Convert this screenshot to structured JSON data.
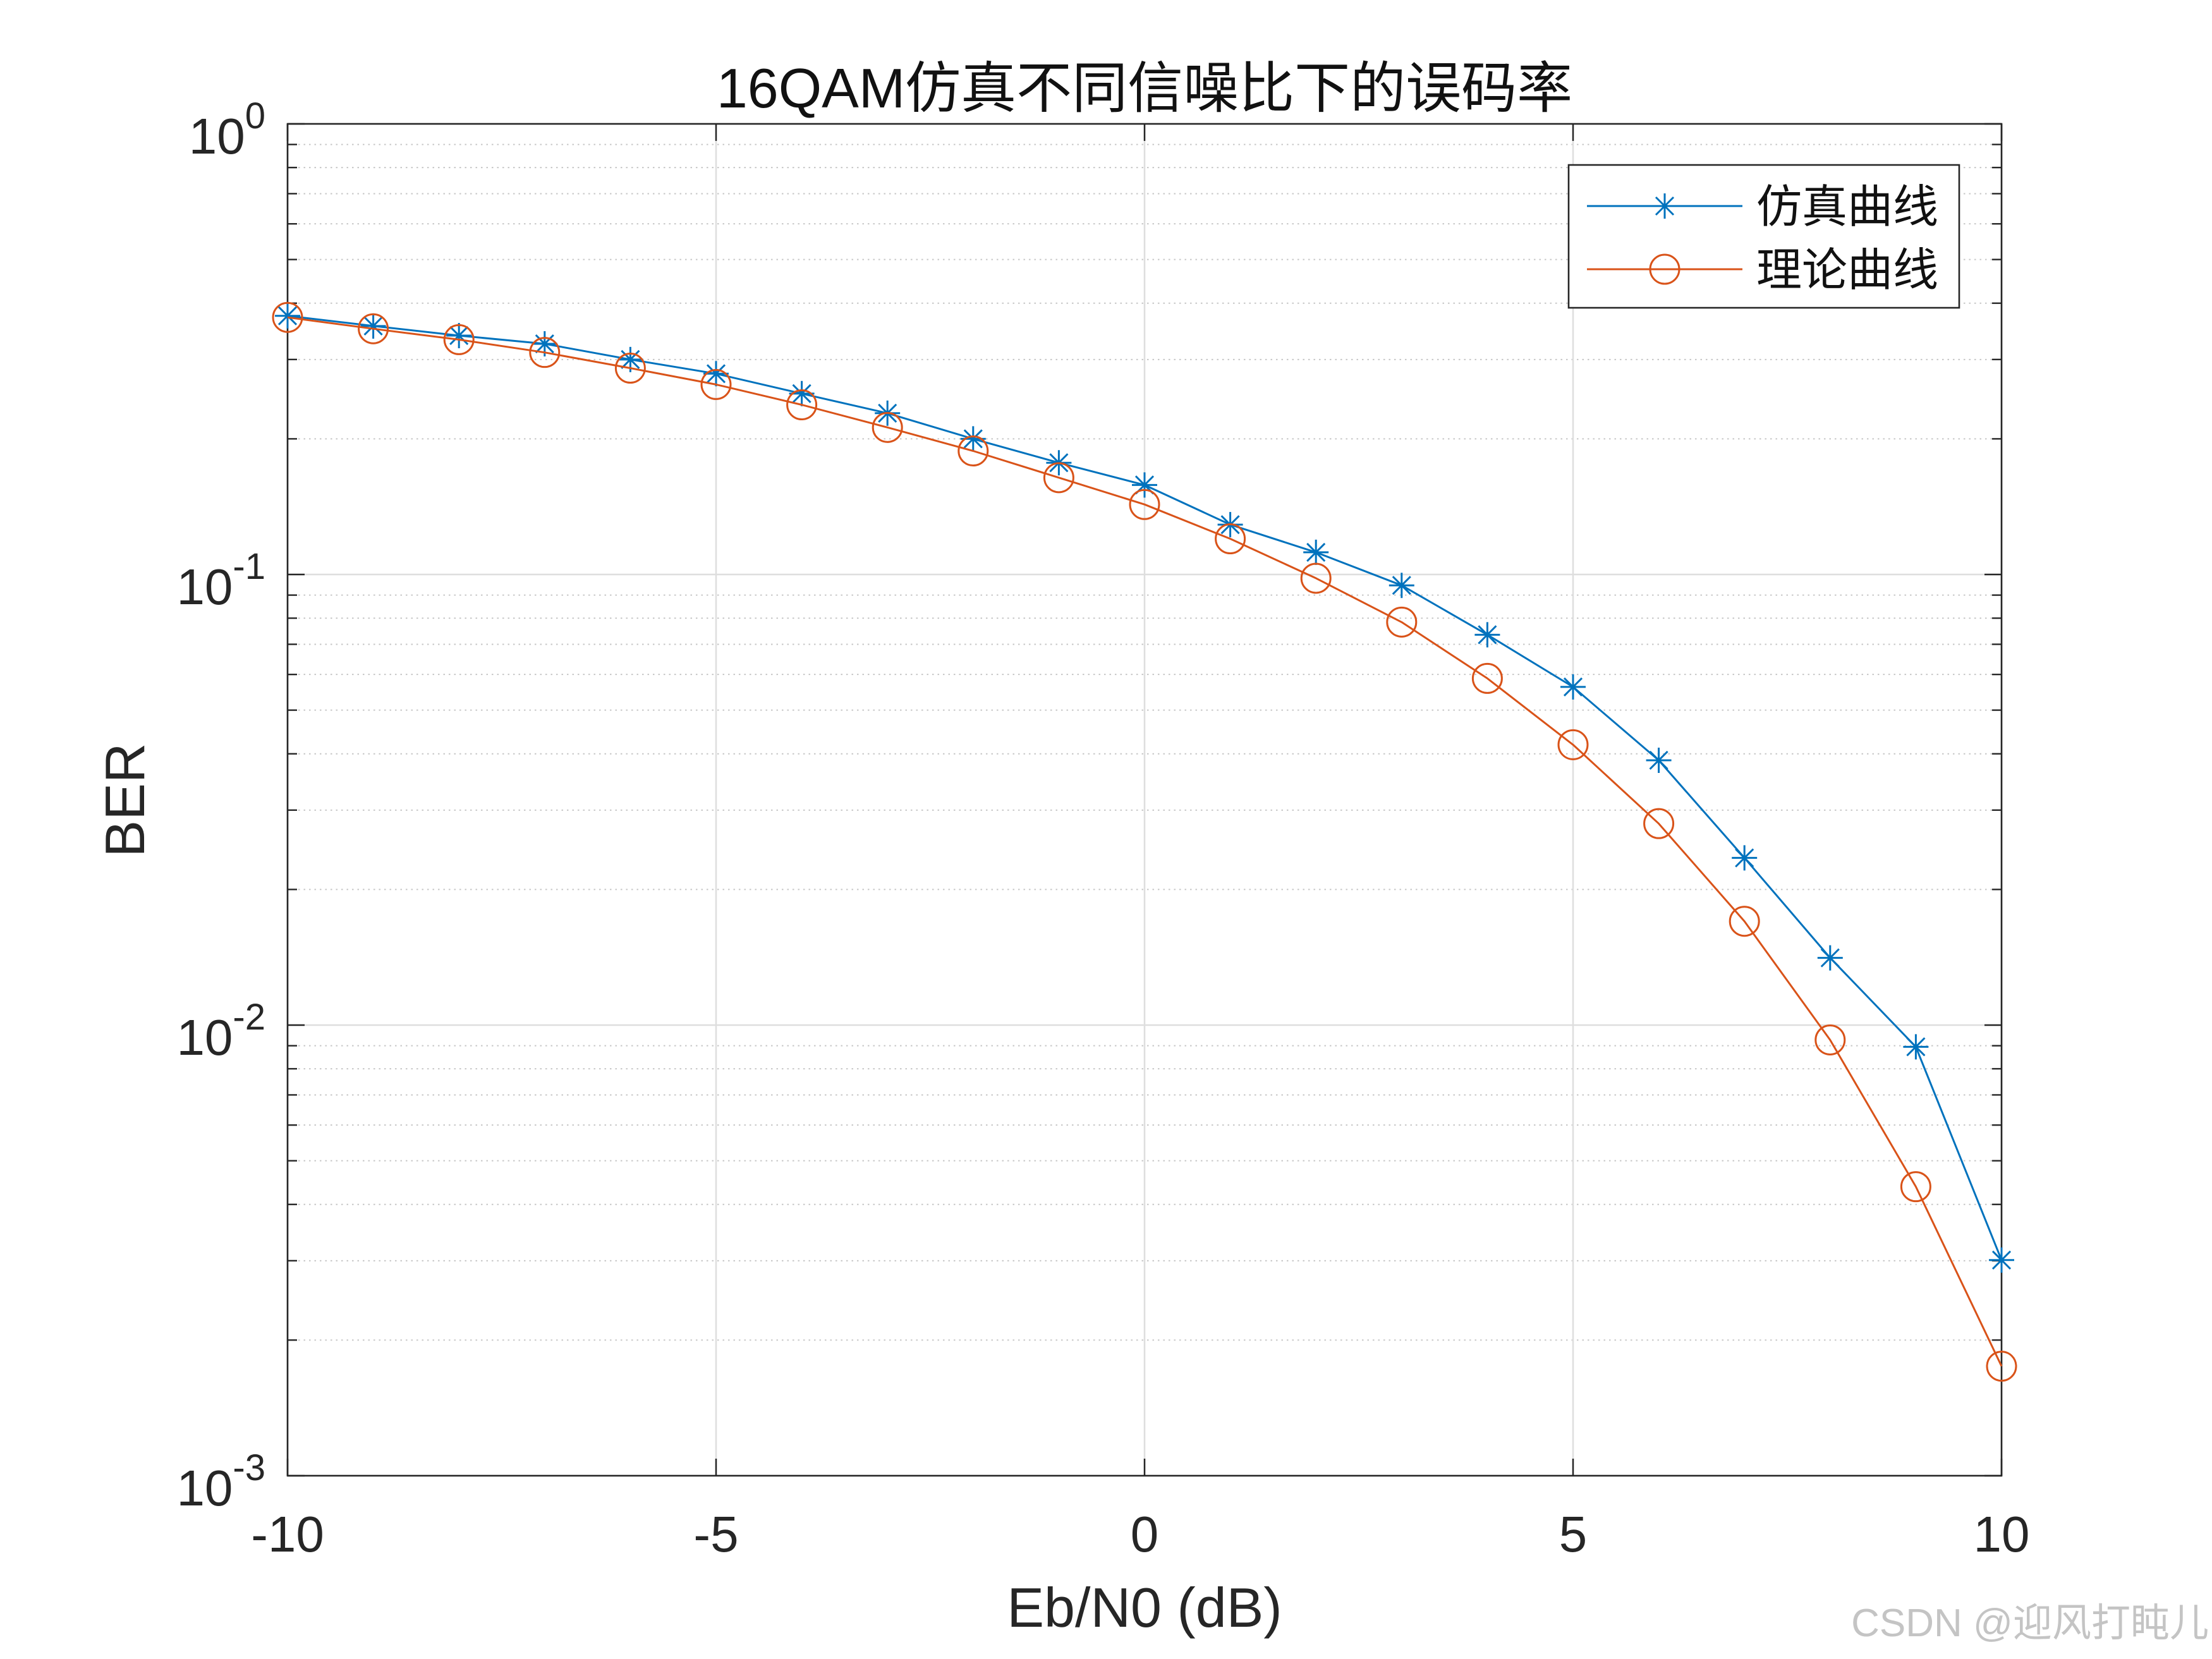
{
  "chart_data": {
    "type": "line",
    "title": "16QAM仿真不同信噪比下的误码率",
    "xlabel": "Eb/N0 (dB)",
    "ylabel": "BER",
    "yscale": "log",
    "xlim": [
      -10,
      10
    ],
    "ylim": [
      0.001,
      1
    ],
    "xticks": [
      -10,
      -5,
      0,
      5,
      10
    ],
    "xtick_labels": [
      "-10",
      "-5",
      "0",
      "5",
      "10"
    ],
    "yticks": [
      1,
      0.1,
      0.01,
      0.001
    ],
    "ytick_labels": [
      {
        "base": "10",
        "exp": "0"
      },
      {
        "base": "10",
        "exp": "-1"
      },
      {
        "base": "10",
        "exp": "-2"
      },
      {
        "base": "10",
        "exp": "-3"
      }
    ],
    "grid": true,
    "minor_grid_y": true,
    "legend_position": "top-right",
    "x": [
      -10,
      -9,
      -8,
      -7,
      -6,
      -5,
      -4,
      -3,
      -2,
      -1,
      0,
      1,
      2,
      3,
      4,
      5,
      6,
      7,
      8,
      9,
      10
    ],
    "series": [
      {
        "name": "仿真曲线",
        "marker": "asterisk",
        "color": "#0072BD",
        "values": [
          0.375,
          0.356,
          0.339,
          0.325,
          0.3,
          0.279,
          0.252,
          0.228,
          0.2,
          0.177,
          0.158,
          0.129,
          0.112,
          0.0946,
          0.0735,
          0.0563,
          0.0387,
          0.0235,
          0.0141,
          0.00895,
          0.00301
        ]
      },
      {
        "name": "理论曲线",
        "marker": "circle",
        "color": "#D95319",
        "values": [
          0.372,
          0.351,
          0.332,
          0.311,
          0.287,
          0.264,
          0.238,
          0.212,
          0.188,
          0.164,
          0.143,
          0.12,
          0.0981,
          0.0784,
          0.0588,
          0.0419,
          0.028,
          0.017,
          0.00927,
          0.00438,
          0.00175
        ]
      }
    ]
  },
  "watermark": "CSDN @迎风打盹儿"
}
